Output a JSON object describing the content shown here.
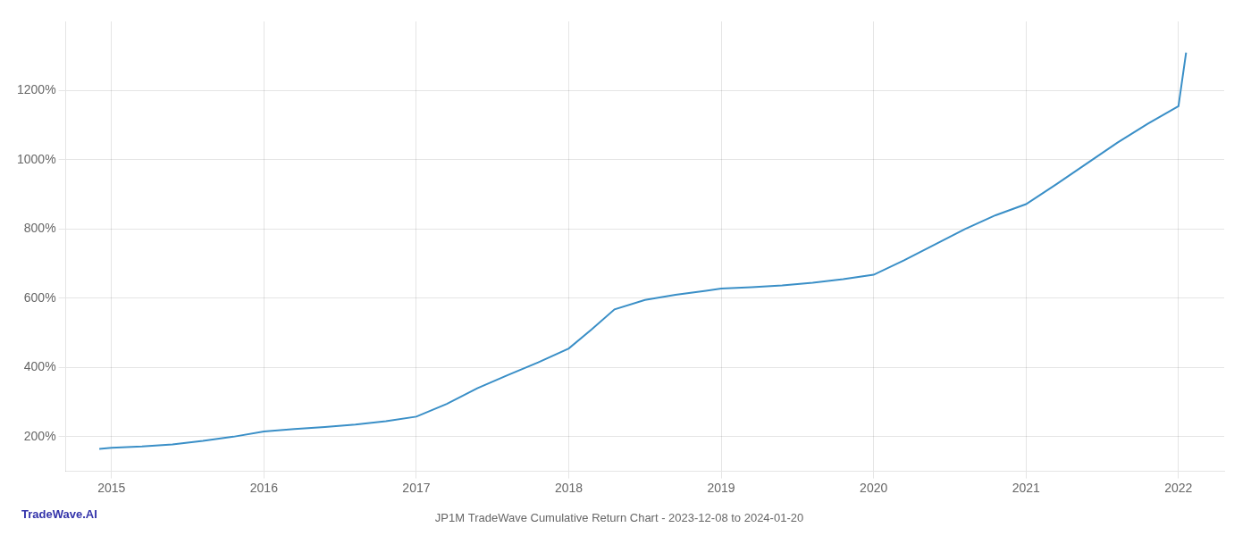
{
  "chart_data": {
    "type": "line",
    "title": "JP1M TradeWave Cumulative Return Chart - 2023-12-08 to 2024-01-20",
    "annotations": [
      {
        "text": "TradeWave.AI",
        "color": "#3333aa"
      }
    ],
    "x": [
      2014.92,
      2015.0,
      2015.1,
      2015.2,
      2015.4,
      2015.6,
      2015.8,
      2016.0,
      2016.2,
      2016.4,
      2016.6,
      2016.8,
      2017.0,
      2017.2,
      2017.4,
      2017.6,
      2017.8,
      2018.0,
      2018.15,
      2018.3,
      2018.5,
      2018.7,
      2018.9,
      2019.0,
      2019.2,
      2019.4,
      2019.6,
      2019.8,
      2020.0,
      2020.2,
      2020.4,
      2020.6,
      2020.8,
      2021.0,
      2021.2,
      2021.4,
      2021.6,
      2021.8,
      2022.0,
      2022.05
    ],
    "values": [
      165,
      168,
      170,
      172,
      178,
      188,
      200,
      215,
      222,
      228,
      235,
      245,
      258,
      295,
      340,
      378,
      415,
      455,
      510,
      568,
      595,
      610,
      622,
      628,
      632,
      637,
      645,
      655,
      668,
      710,
      755,
      800,
      840,
      872,
      930,
      990,
      1050,
      1105,
      1155,
      1310
    ],
    "color": "#3a8fc7",
    "xlim": [
      2014.7,
      2022.3
    ],
    "xticks": [
      2015,
      2016,
      2017,
      2018,
      2019,
      2020,
      2021,
      2022
    ],
    "ylim": [
      100,
      1400
    ],
    "yticks": [
      {
        "value": 200,
        "label": "200%"
      },
      {
        "value": 400,
        "label": "400%"
      },
      {
        "value": 600,
        "label": "600%"
      },
      {
        "value": 800,
        "label": "800%"
      },
      {
        "value": 1000,
        "label": "1000%"
      },
      {
        "value": 1200,
        "label": "1200%"
      }
    ],
    "grid": true
  }
}
